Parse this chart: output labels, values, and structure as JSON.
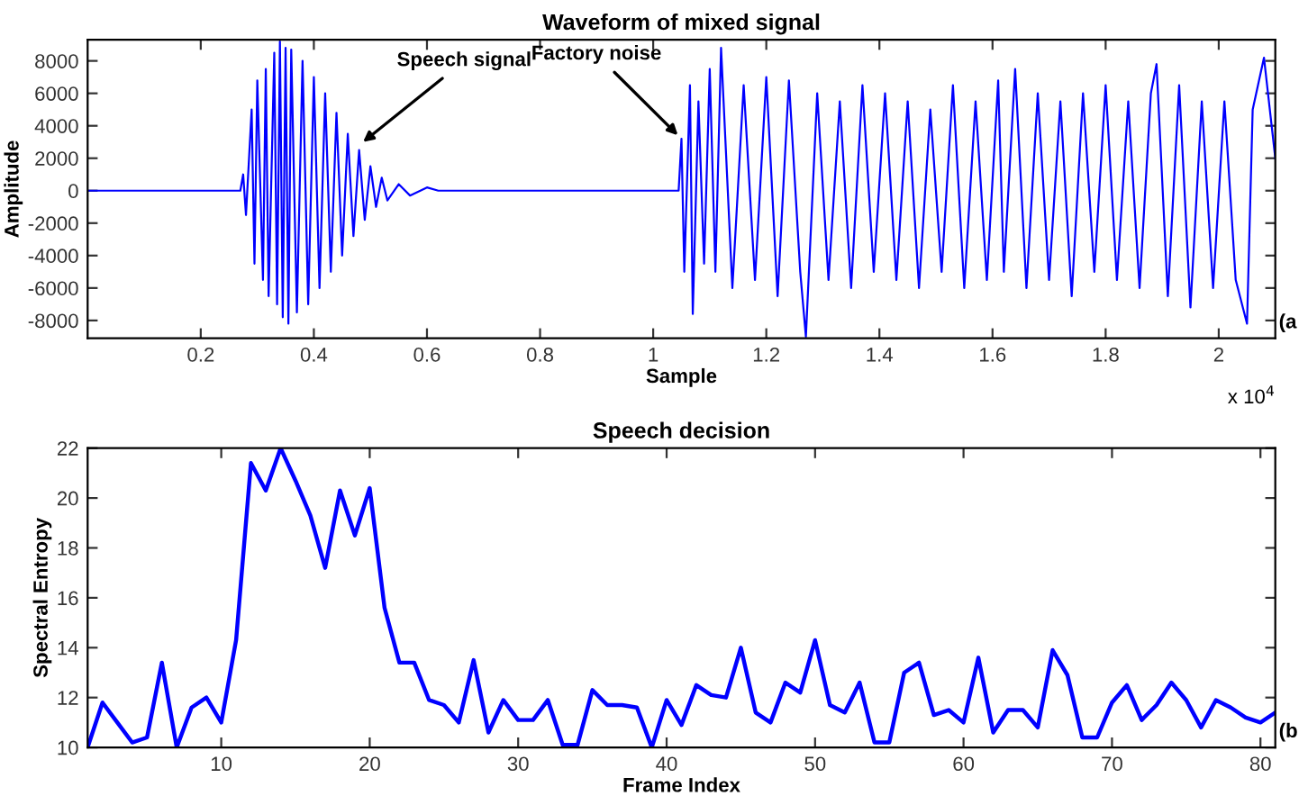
{
  "chart_data": [
    {
      "type": "line",
      "title": "Waveform of mixed signal",
      "xlabel": "Sample",
      "ylabel": "Amplitude",
      "xlim": [
        0,
        2.1
      ],
      "ylim": [
        -9100,
        9300
      ],
      "xticks": [
        0.2,
        0.4,
        0.6,
        0.8,
        1,
        1.2,
        1.4,
        1.6,
        1.8,
        2
      ],
      "yticks": [
        -8000,
        -6000,
        -4000,
        -2000,
        0,
        2000,
        4000,
        6000,
        8000
      ],
      "grid": false,
      "marker": "none",
      "line_style": "solid",
      "annotations": [
        {
          "text": "Speech signal",
          "x": 0.48,
          "y": 2800
        },
        {
          "text": "Factory noise",
          "x": 1.05,
          "y": 3200
        },
        "(a",
        "x 10$^{4}$"
      ],
      "series": [
        {
          "color": "#0000ff",
          "x": [
            0,
            0.27,
            0.275,
            0.28,
            0.29,
            0.295,
            0.3,
            0.31,
            0.315,
            0.32,
            0.33,
            0.335,
            0.34,
            0.345,
            0.35,
            0.355,
            0.36,
            0.37,
            0.38,
            0.39,
            0.4,
            0.41,
            0.42,
            0.43,
            0.44,
            0.45,
            0.46,
            0.47,
            0.48,
            0.49,
            0.5,
            0.51,
            0.52,
            0.53,
            0.55,
            0.57,
            0.6,
            0.62,
            1.045,
            1.05,
            1.055,
            1.065,
            1.07,
            1.08,
            1.09,
            1.1,
            1.11,
            1.12,
            1.14,
            1.16,
            1.18,
            1.2,
            1.22,
            1.24,
            1.26,
            1.27,
            1.29,
            1.31,
            1.33,
            1.35,
            1.37,
            1.39,
            1.41,
            1.43,
            1.45,
            1.47,
            1.49,
            1.51,
            1.53,
            1.55,
            1.57,
            1.59,
            1.61,
            1.62,
            1.64,
            1.66,
            1.68,
            1.7,
            1.72,
            1.74,
            1.76,
            1.78,
            1.8,
            1.82,
            1.84,
            1.86,
            1.88,
            1.89,
            1.91,
            1.93,
            1.95,
            1.97,
            1.99,
            2.01,
            2.03,
            2.05,
            2.06,
            2.08,
            2.1
          ],
          "values": [
            0,
            0,
            1000,
            -1500,
            5000,
            -4500,
            6800,
            -5500,
            7500,
            -6500,
            8500,
            -7000,
            9200,
            -7800,
            8800,
            -8200,
            8700,
            -7500,
            8000,
            -7000,
            7000,
            -6000,
            6000,
            -5000,
            4800,
            -4000,
            3500,
            -2800,
            2500,
            -1800,
            1500,
            -1000,
            800,
            -600,
            400,
            -300,
            200,
            0,
            0,
            3200,
            -5000,
            6500,
            -7600,
            5500,
            -4500,
            7500,
            -5000,
            8800,
            -6000,
            6500,
            -5500,
            7000,
            -6500,
            6800,
            -5000,
            -9000,
            6000,
            -5500,
            5500,
            -6000,
            6500,
            -5000,
            6000,
            -5500,
            5500,
            -6000,
            5000,
            -5000,
            6500,
            -6000,
            5500,
            -5500,
            6800,
            -5000,
            7500,
            -6000,
            6000,
            -5500,
            5500,
            -6500,
            6000,
            -5000,
            6500,
            -5500,
            5500,
            -6000,
            6000,
            7800,
            -6500,
            6500,
            -7200,
            5500,
            -6000,
            5500,
            -5500,
            -8200,
            5000,
            8200,
            2000
          ]
        }
      ]
    },
    {
      "type": "line",
      "title": "Speech decision",
      "xlabel": "Frame Index",
      "ylabel": "Spectral Entropy",
      "xlim": [
        1,
        81
      ],
      "ylim": [
        10,
        22
      ],
      "xticks": [
        10,
        20,
        30,
        40,
        50,
        60,
        70,
        80
      ],
      "yticks": [
        10,
        12,
        14,
        16,
        18,
        20,
        22
      ],
      "grid": false,
      "marker": "none",
      "line_style": "solid",
      "annotations": [
        "(b"
      ],
      "x": [
        1,
        2,
        3,
        4,
        5,
        6,
        7,
        8,
        9,
        10,
        11,
        12,
        13,
        14,
        15,
        16,
        17,
        18,
        19,
        20,
        21,
        22,
        23,
        24,
        25,
        26,
        27,
        28,
        29,
        30,
        31,
        32,
        33,
        34,
        35,
        36,
        37,
        38,
        39,
        40,
        41,
        42,
        43,
        44,
        45,
        46,
        47,
        48,
        49,
        50,
        51,
        52,
        53,
        54,
        55,
        56,
        57,
        58,
        59,
        60,
        61,
        62,
        63,
        64,
        65,
        66,
        67,
        68,
        69,
        70,
        71,
        72,
        73,
        74,
        75,
        76,
        77,
        78,
        79,
        80,
        81
      ],
      "series": [
        {
          "color": "#0000ff",
          "values": [
            10.0,
            11.8,
            11.0,
            10.2,
            10.4,
            13.4,
            10.0,
            11.6,
            12.0,
            11.0,
            14.3,
            21.4,
            20.3,
            22.0,
            20.7,
            19.3,
            17.2,
            20.3,
            18.5,
            20.4,
            15.6,
            13.4,
            13.4,
            11.9,
            11.7,
            11.0,
            13.5,
            10.6,
            11.9,
            11.1,
            11.1,
            11.9,
            10.1,
            10.1,
            12.3,
            11.7,
            11.7,
            11.6,
            10.0,
            11.9,
            10.9,
            12.5,
            12.1,
            12.0,
            14.0,
            11.4,
            11.0,
            12.6,
            12.2,
            14.3,
            11.7,
            11.4,
            12.6,
            10.2,
            10.2,
            13.0,
            13.4,
            11.3,
            11.5,
            11.0,
            13.6,
            10.6,
            11.5,
            11.5,
            10.8,
            13.9,
            12.9,
            10.4,
            10.4,
            11.8,
            12.5,
            11.1,
            11.7,
            12.6,
            11.9,
            10.8,
            11.9,
            11.6,
            11.2,
            11.0,
            11.4
          ]
        }
      ]
    }
  ]
}
